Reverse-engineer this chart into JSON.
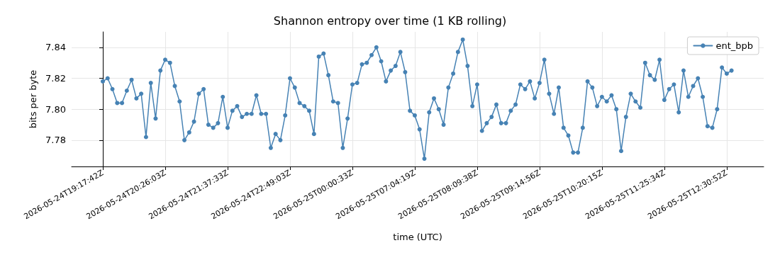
{
  "chart_data": {
    "type": "line",
    "title": "Shannon entropy over time (1 KB rolling)",
    "xlabel": "time (UTC)",
    "ylabel": "bits per byte",
    "categories": [
      "2026-05-24T19:17:42Z",
      null,
      null,
      null,
      null,
      null,
      null,
      null,
      null,
      null,
      null,
      null,
      null,
      "2026-05-24T20:26:03Z",
      null,
      null,
      null,
      null,
      null,
      null,
      null,
      null,
      null,
      null,
      null,
      null,
      "2026-05-24T21:37:33Z",
      null,
      null,
      null,
      null,
      null,
      null,
      null,
      null,
      null,
      null,
      null,
      null,
      "2026-05-24T22:49:03Z",
      null,
      null,
      null,
      null,
      null,
      null,
      null,
      null,
      null,
      null,
      null,
      null,
      "2026-05-25T00:00:33Z",
      null,
      null,
      null,
      null,
      null,
      null,
      null,
      null,
      null,
      null,
      null,
      null,
      "2026-05-25T07:04:19Z",
      null,
      null,
      null,
      null,
      null,
      null,
      null,
      null,
      null,
      null,
      null,
      null,
      "2026-05-25T08:09:38Z",
      null,
      null,
      null,
      null,
      null,
      null,
      null,
      null,
      null,
      null,
      null,
      null,
      "2026-05-25T09:14:56Z",
      null,
      null,
      null,
      null,
      null,
      null,
      null,
      null,
      null,
      null,
      null,
      null,
      "2026-05-25T10:20:15Z",
      null,
      null,
      null,
      null,
      null,
      null,
      null,
      null,
      null,
      null,
      null,
      null,
      "2026-05-25T11:25:34Z",
      null,
      null,
      null,
      null,
      null,
      null,
      null,
      null,
      null,
      null,
      null,
      null,
      "2026-05-25T12:30:52Z",
      null
    ],
    "series": [
      {
        "name": "ent_bpb",
        "color": "#4682b4",
        "values": [
          7.818,
          7.82,
          7.813,
          7.804,
          7.804,
          7.812,
          7.819,
          7.807,
          7.81,
          7.782,
          7.817,
          7.794,
          7.825,
          7.832,
          7.83,
          7.815,
          7.805,
          7.78,
          7.785,
          7.792,
          7.81,
          7.813,
          7.79,
          7.788,
          7.791,
          7.808,
          7.788,
          7.799,
          7.802,
          7.795,
          7.797,
          7.797,
          7.809,
          7.797,
          7.797,
          7.775,
          7.784,
          7.78,
          7.796,
          7.82,
          7.814,
          7.804,
          7.802,
          7.799,
          7.784,
          7.834,
          7.836,
          7.822,
          7.805,
          7.804,
          7.775,
          7.794,
          7.816,
          7.817,
          7.829,
          7.83,
          7.835,
          7.84,
          7.831,
          7.818,
          7.825,
          7.828,
          7.837,
          7.824,
          7.799,
          7.796,
          7.787,
          7.768,
          7.798,
          7.807,
          7.8,
          7.79,
          7.814,
          7.823,
          7.837,
          7.845,
          7.828,
          7.802,
          7.816,
          7.786,
          7.791,
          7.795,
          7.803,
          7.791,
          7.791,
          7.799,
          7.803,
          7.816,
          7.813,
          7.818,
          7.807,
          7.817,
          7.832,
          7.81,
          7.797,
          7.814,
          7.788,
          7.783,
          7.772,
          7.772,
          7.788,
          7.818,
          7.814,
          7.802,
          7.808,
          7.805,
          7.809,
          7.8,
          7.773,
          7.795,
          7.81,
          7.805,
          7.801,
          7.83,
          7.822,
          7.819,
          7.832,
          7.806,
          7.813,
          7.816,
          7.798,
          7.825,
          7.808,
          7.815,
          7.82,
          7.808,
          7.789,
          7.788,
          7.8,
          7.827,
          7.823,
          7.825
        ]
      }
    ],
    "ylim": [
      7.763,
      7.85
    ],
    "yticks": [
      {
        "value": 7.78,
        "label": "7.78"
      },
      {
        "value": 7.8,
        "label": "7.80"
      },
      {
        "value": 7.82,
        "label": "7.82"
      },
      {
        "value": 7.84,
        "label": "7.84"
      }
    ],
    "grid": true,
    "legend": "top right",
    "marker": "circle",
    "line_style": "solid"
  }
}
